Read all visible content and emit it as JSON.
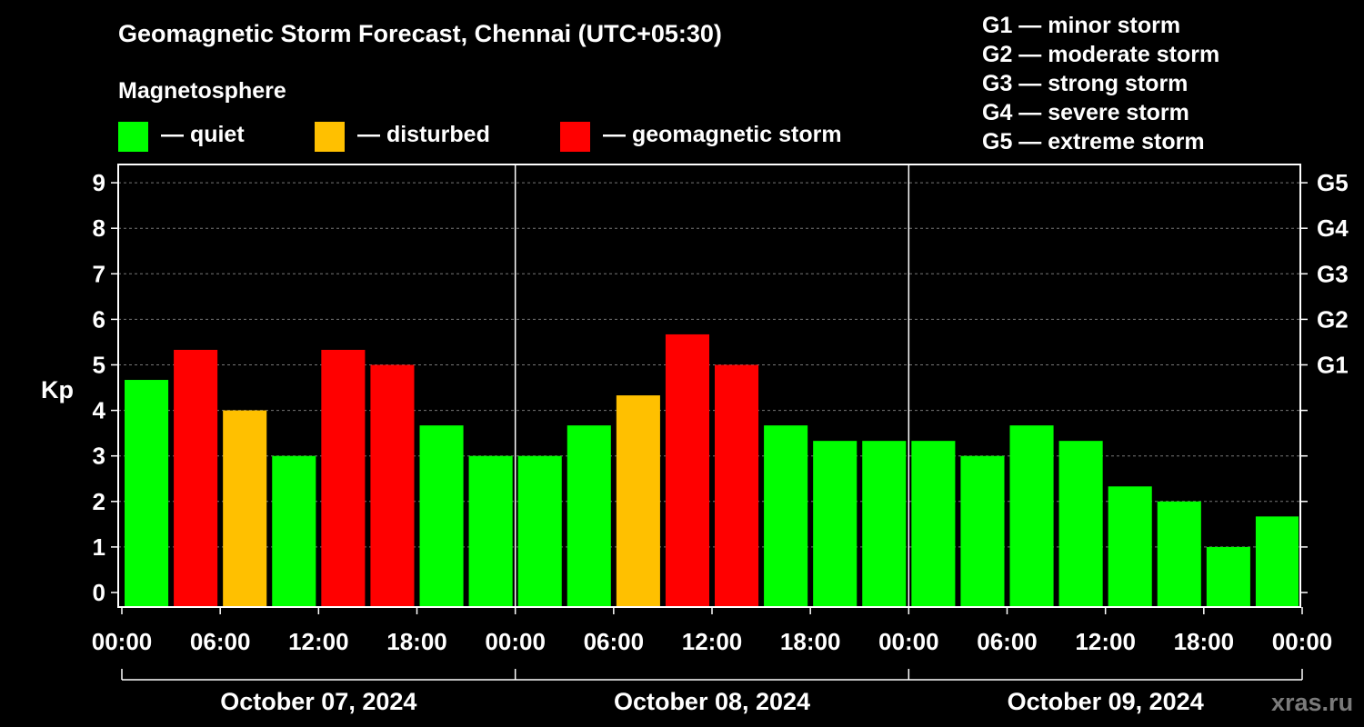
{
  "title": "Geomagnetic Storm Forecast, Chennai (UTC+05:30)",
  "legend": {
    "heading": "Magnetosphere",
    "items": [
      {
        "label": "— quiet",
        "color": "#00ff00"
      },
      {
        "label": "— disturbed",
        "color": "#ffc000"
      },
      {
        "label": "— geomagnetic storm",
        "color": "#ff0000"
      }
    ]
  },
  "g_scale": [
    "G1 — minor storm",
    "G2 — moderate storm",
    "G3 — strong storm",
    "G4 — severe storm",
    "G5 — extreme storm"
  ],
  "watermark": "xras.ru",
  "chart_data": {
    "type": "bar",
    "ylabel": "Kp",
    "ylim": [
      0,
      9
    ],
    "y_ticks": [
      "0",
      "1",
      "2",
      "3",
      "4",
      "5",
      "6",
      "7",
      "8",
      "9"
    ],
    "right_ticks": [
      {
        "value": 5,
        "label": "G1"
      },
      {
        "value": 6,
        "label": "G2"
      },
      {
        "value": 7,
        "label": "G3"
      },
      {
        "value": 8,
        "label": "G4"
      },
      {
        "value": 9,
        "label": "G5"
      }
    ],
    "x_tick_labels": [
      "00:00",
      "06:00",
      "12:00",
      "18:00",
      "00:00",
      "06:00",
      "12:00",
      "18:00",
      "00:00",
      "06:00",
      "12:00",
      "18:00",
      "00:00"
    ],
    "dates": [
      "October 07, 2024",
      "October 08, 2024",
      "October 09, 2024"
    ],
    "bar_hours": [
      1.5,
      4.5,
      7.5,
      10.5,
      13.5,
      16.5,
      19.5,
      22.5,
      25.5,
      28.5,
      31.5,
      34.5,
      37.5,
      40.5,
      43.5,
      46.5,
      49.5,
      52.5,
      55.5,
      58.5,
      61.5,
      64.5,
      67.5,
      70.5
    ],
    "values": [
      4.67,
      5.33,
      4.0,
      3.0,
      5.33,
      5.0,
      3.67,
      3.0,
      3.0,
      3.67,
      4.33,
      5.67,
      5.0,
      3.67,
      3.33,
      3.33,
      3.33,
      3.0,
      3.67,
      3.33,
      2.33,
      2.0,
      1.0,
      1.67
    ],
    "categories": [
      "quiet",
      "storm",
      "disturbed",
      "quiet",
      "storm",
      "storm",
      "quiet",
      "quiet",
      "quiet",
      "quiet",
      "disturbed",
      "storm",
      "storm",
      "quiet",
      "quiet",
      "quiet",
      "quiet",
      "quiet",
      "quiet",
      "quiet",
      "quiet",
      "quiet",
      "quiet",
      "quiet"
    ],
    "x_range_hours": [
      0,
      72
    ],
    "grid": "horizontal dashed"
  }
}
